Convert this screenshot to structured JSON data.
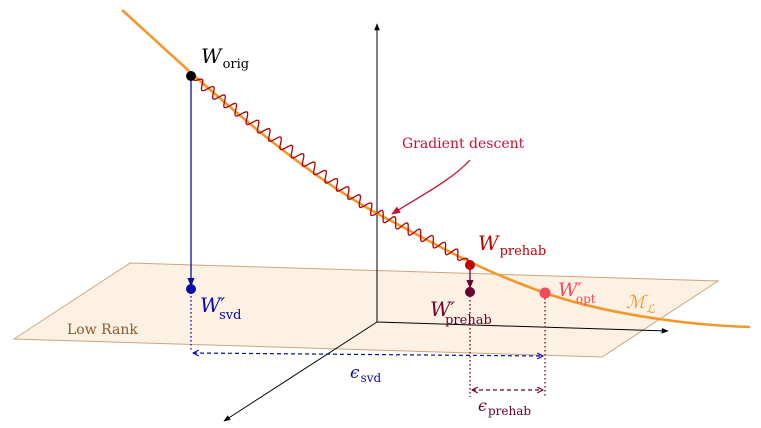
{
  "labels": {
    "w_orig": {
      "main": "W",
      "sub": "orig"
    },
    "w_prehab": {
      "main": "W",
      "sub": "prehab"
    },
    "w_prehab_prime": {
      "main": "W′",
      "sub": "prehab"
    },
    "w_opt_prime": {
      "main": "W′",
      "sub": "opt"
    },
    "w_svd_prime": {
      "main": "W′",
      "sub": "svd"
    },
    "manifold": {
      "main": "ℳ",
      "sub": "ℒ"
    },
    "eps_svd": {
      "main": "ϵ",
      "sub": "svd"
    },
    "eps_prehab": {
      "main": "ϵ",
      "sub": "prehab"
    },
    "gradient_descent": "Gradient descent",
    "low_rank": "Low Rank"
  },
  "colors": {
    "manifold": "#f5962a",
    "plane_fill": "#fdf1e3",
    "plane_stroke": "#c9a77f",
    "gradient_path": "#b00000",
    "svd": "#0a0aa8",
    "prehab_dark": "#6b0030",
    "prehab_point": "#c00000",
    "opt_point": "#f54a5a",
    "axis": "#000000",
    "low_rank_text": "#8b5a2b",
    "gradient_label": "#c8102e"
  }
}
